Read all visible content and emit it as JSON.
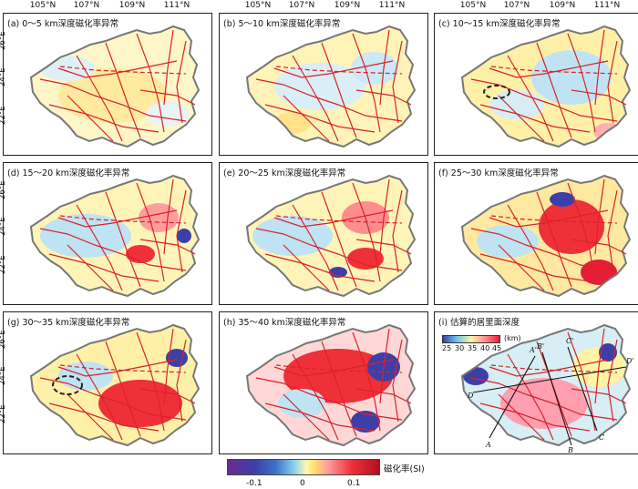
{
  "longitude_labels": [
    "105°N",
    "107°N",
    "109°N",
    "111°N"
  ],
  "latitude_labels": [
    "26°E",
    "24°E",
    "22°E"
  ],
  "panels": [
    {
      "title": "(a) 0～5 km深度磁化率异常"
    },
    {
      "title": "(b) 5～10 km深度磁化率异常"
    },
    {
      "title": "(c) 10～15 km深度磁化率异常"
    },
    {
      "title": "(d) 15～20 km深度磁化率异常"
    },
    {
      "title": "(e) 20～25 km深度磁化率异常"
    },
    {
      "title": "(f) 25～30 km深度磁化率异常"
    },
    {
      "title": "(g) 30～35 km深度磁化率异常"
    },
    {
      "title": "(h) 35～40 km深度磁化率异常"
    },
    {
      "title": "(i)  估算的居里面深度"
    }
  ],
  "curie_legend": {
    "ticks": [
      "25",
      "30",
      "35",
      "40",
      "45"
    ],
    "unit": "(km)"
  },
  "profile_labels": [
    "A",
    "A'",
    "B",
    "B'",
    "C",
    "C'",
    "D",
    "D'"
  ],
  "colorbar": {
    "ticks": [
      "-0.1",
      "0",
      "0.1"
    ],
    "unit": "磁化率(SI)"
  },
  "colors": {
    "fault": "#d8232a",
    "boundary": "#777777",
    "high": "#e51d35",
    "low": "#3d3fa8"
  }
}
